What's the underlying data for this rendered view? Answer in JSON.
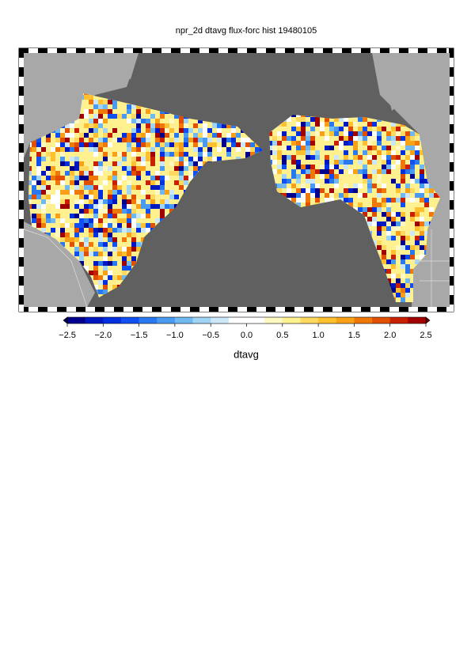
{
  "chart_data": {
    "type": "map",
    "title": "npr_2d dtavg flux-forc hist 19480105",
    "colorbar_label": "dtavg",
    "clim": [
      -2.5,
      2.5
    ],
    "cticks": [
      {
        "value": -2.5,
        "label": "−2.5"
      },
      {
        "value": -2,
        "label": "−2.0"
      },
      {
        "value": -1.5,
        "label": "−1.5"
      },
      {
        "value": -1,
        "label": "−1.0"
      },
      {
        "value": -0.5,
        "label": "−0.5"
      },
      {
        "value": 0,
        "label": "0.0"
      },
      {
        "value": 0.5,
        "label": "0.5"
      },
      {
        "value": 1,
        "label": "1.0"
      },
      {
        "value": 1.5,
        "label": "1.5"
      },
      {
        "value": 2,
        "label": "2.0"
      },
      {
        "value": 2.5,
        "label": "2.5"
      }
    ],
    "colors": [
      "#00008c",
      "#0018c0",
      "#0030e0",
      "#1050f0",
      "#2a78f0",
      "#4a9af0",
      "#70b8f0",
      "#a0d4f4",
      "#cce8f8",
      "#ffffff",
      "#ffffff",
      "#fff8c0",
      "#fff090",
      "#ffd860",
      "#ffc030",
      "#f8a018",
      "#f07808",
      "#e05000",
      "#c82000",
      "#a00000"
    ]
  }
}
